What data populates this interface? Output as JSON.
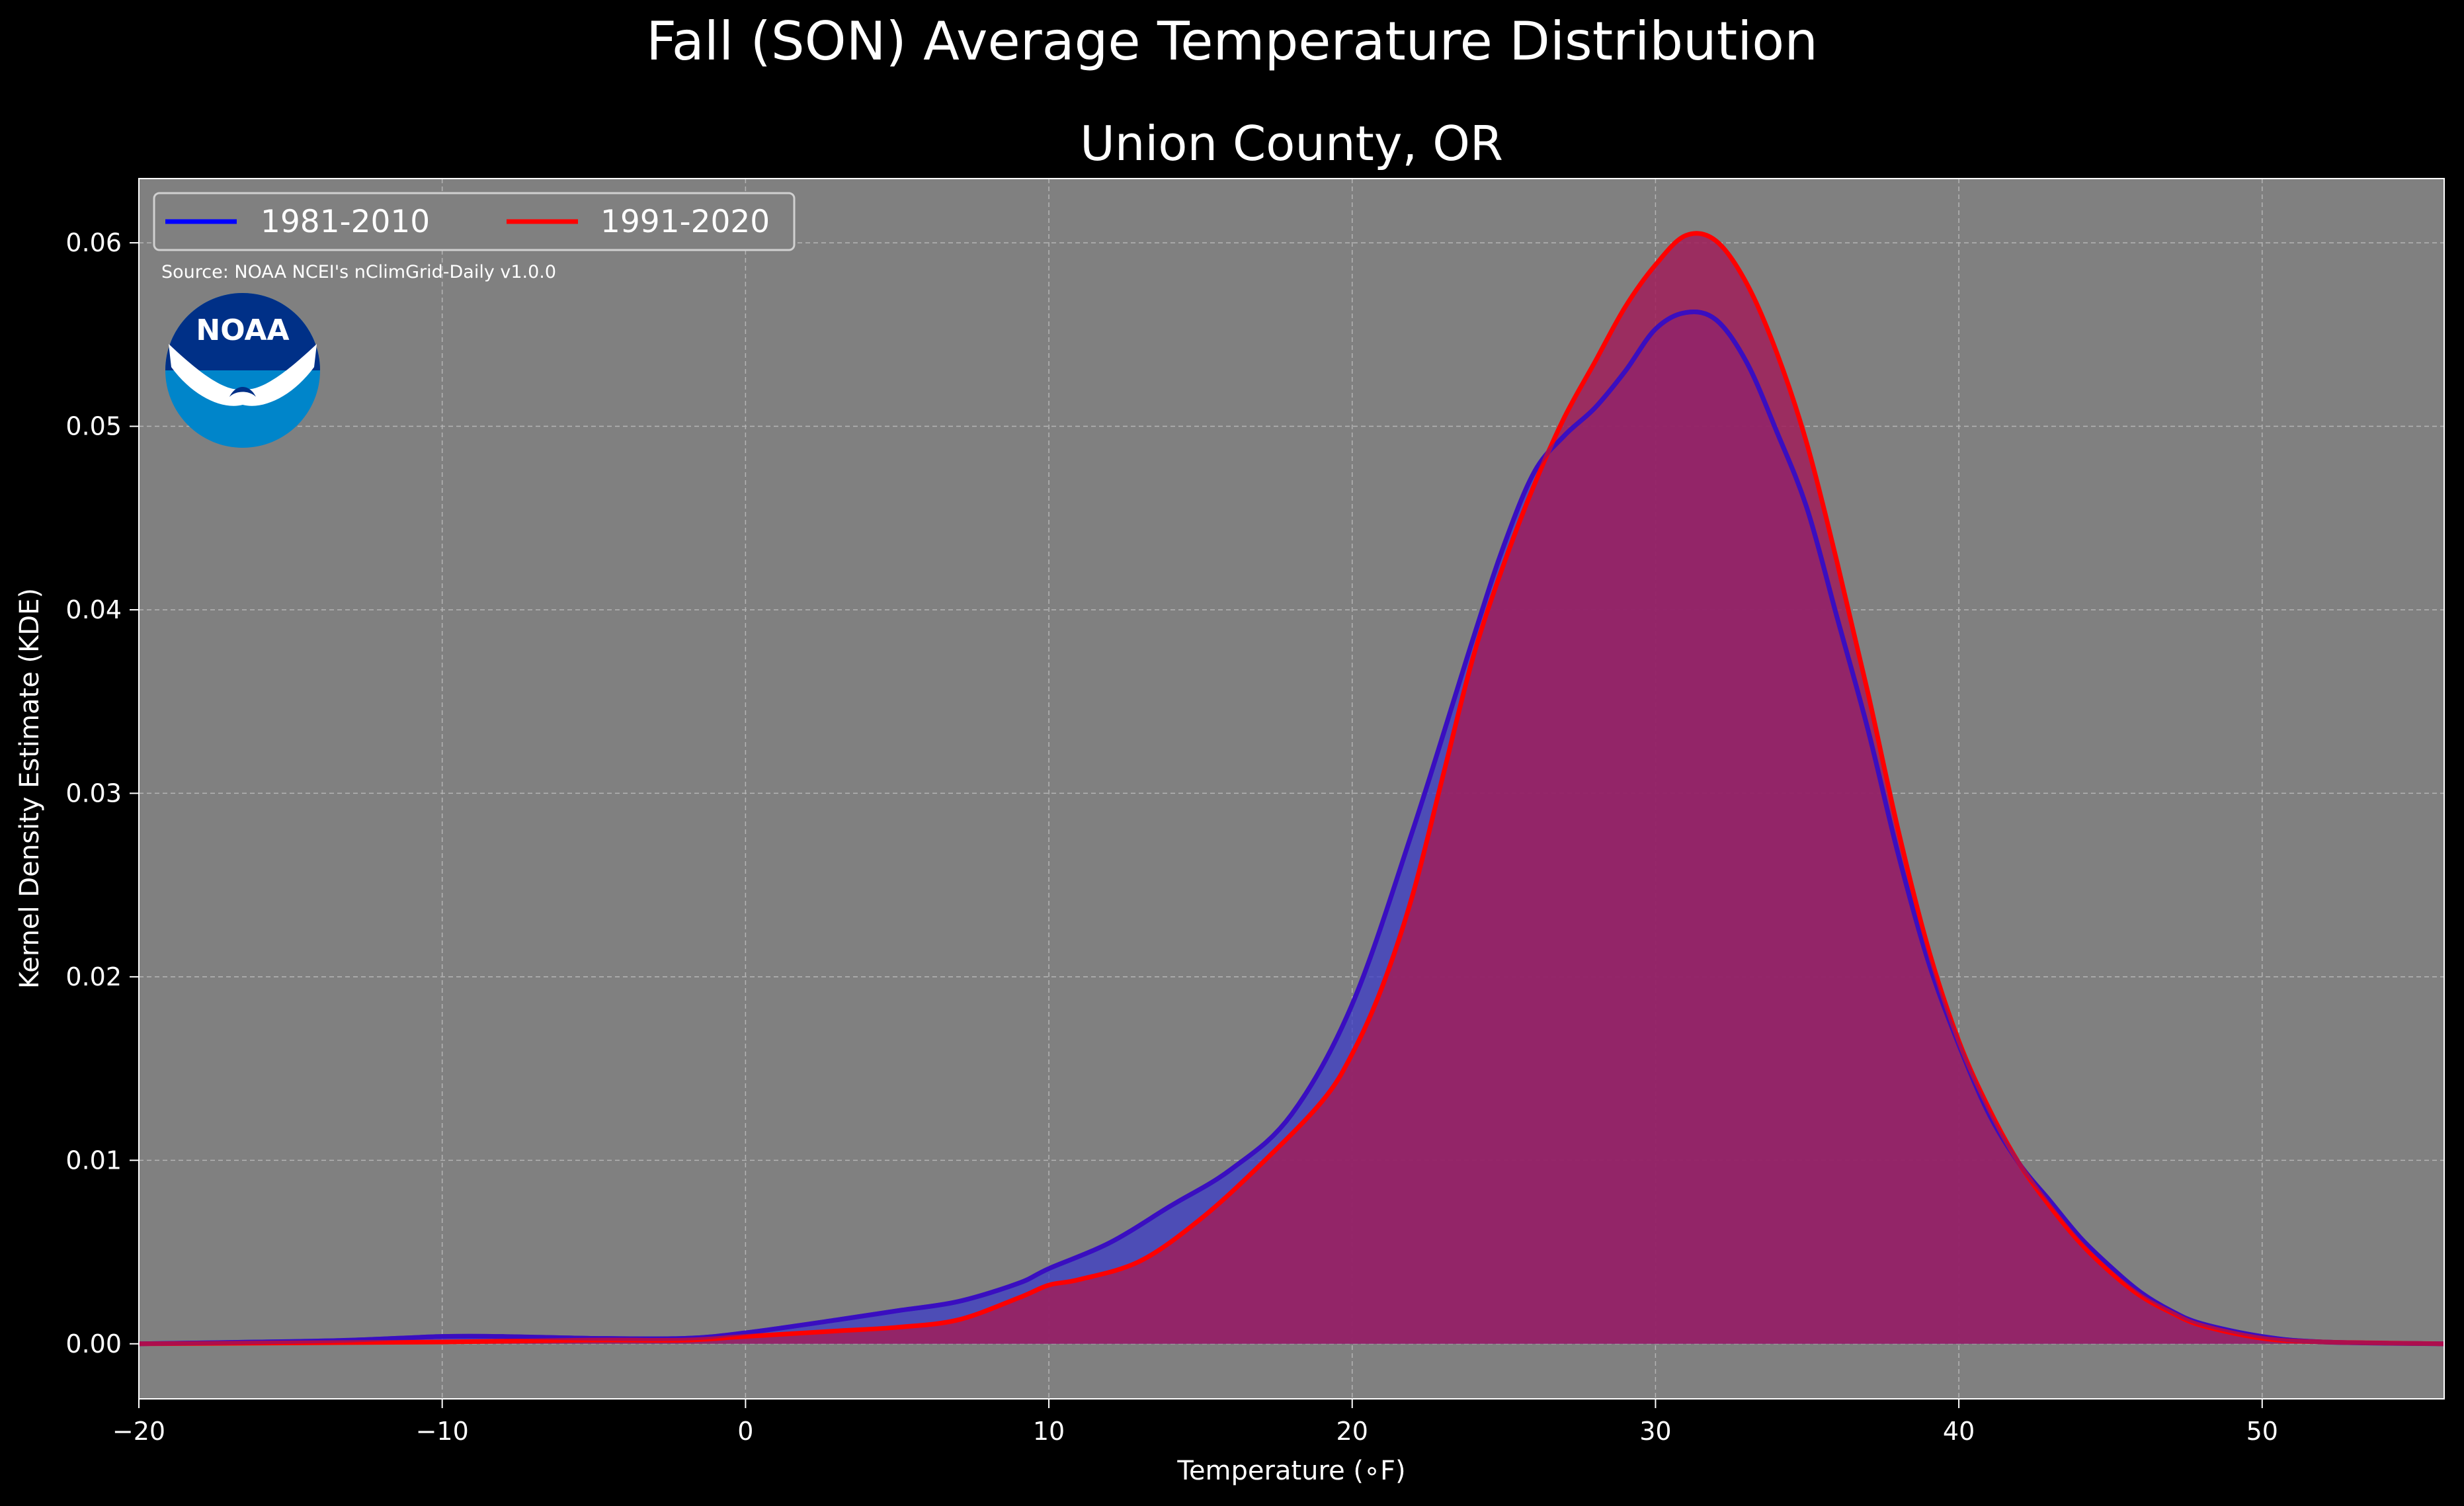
{
  "chart_data": {
    "type": "area",
    "title": "Fall (SON) Average Temperature Distribution",
    "subtitle": "Union County, OR",
    "xlabel": "Temperature (∘F)",
    "ylabel": "Kernel Density Estimate (KDE)",
    "xlim": [
      -20,
      56
    ],
    "ylim": [
      -0.003,
      0.0635
    ],
    "x_ticks": [
      -20,
      -10,
      0,
      10,
      20,
      30,
      40,
      50
    ],
    "x_tick_labels": [
      "−20",
      "−10",
      "0",
      "10",
      "20",
      "30",
      "40",
      "50"
    ],
    "y_ticks": [
      0.0,
      0.01,
      0.02,
      0.03,
      0.04,
      0.05,
      0.06
    ],
    "y_tick_labels": [
      "0.00",
      "0.01",
      "0.02",
      "0.03",
      "0.04",
      "0.05",
      "0.06"
    ],
    "grid": true,
    "legend_position": "top-left",
    "source_note": "Source: NOAA NCEI's nClimGrid-Daily v1.0.0",
    "logo_text": "NOAA",
    "background_color": "#000000",
    "plot_background_color": "#808080",
    "series": [
      {
        "name": "1981-2010",
        "color": "#0000ff",
        "fill_color": "#3c3cc8",
        "points": [
          [
            -20,
            0.0
          ],
          [
            -16,
            0.0001
          ],
          [
            -13,
            0.0002
          ],
          [
            -10,
            0.0004
          ],
          [
            -8,
            0.0004
          ],
          [
            -5,
            0.0003
          ],
          [
            -2,
            0.0003
          ],
          [
            0,
            0.0006
          ],
          [
            3,
            0.0013
          ],
          [
            5,
            0.0018
          ],
          [
            7,
            0.0023
          ],
          [
            9,
            0.0033
          ],
          [
            10,
            0.0041
          ],
          [
            12,
            0.0055
          ],
          [
            14,
            0.0075
          ],
          [
            16,
            0.0095
          ],
          [
            18,
            0.0125
          ],
          [
            20,
            0.0185
          ],
          [
            22,
            0.028
          ],
          [
            24,
            0.0385
          ],
          [
            25,
            0.0435
          ],
          [
            26,
            0.0475
          ],
          [
            27,
            0.0495
          ],
          [
            28,
            0.051
          ],
          [
            29,
            0.053
          ],
          [
            30,
            0.0553
          ],
          [
            31,
            0.0562
          ],
          [
            32,
            0.0558
          ],
          [
            33,
            0.0535
          ],
          [
            34,
            0.0497
          ],
          [
            35,
            0.0455
          ],
          [
            36,
            0.0395
          ],
          [
            37,
            0.0335
          ],
          [
            38,
            0.0267
          ],
          [
            39,
            0.0208
          ],
          [
            40,
            0.0163
          ],
          [
            41,
            0.0125
          ],
          [
            42,
            0.0098
          ],
          [
            43,
            0.0078
          ],
          [
            44,
            0.0058
          ],
          [
            45,
            0.0042
          ],
          [
            46,
            0.0028
          ],
          [
            47,
            0.0018
          ],
          [
            48,
            0.0011
          ],
          [
            50,
            0.0004
          ],
          [
            52,
            0.0001
          ],
          [
            56,
            0.0
          ]
        ]
      },
      {
        "name": "1991-2020",
        "color": "#ff0000",
        "fill_color": "#a01e5a",
        "points": [
          [
            -20,
            0.0
          ],
          [
            -10,
            0.0001
          ],
          [
            -5,
            0.0002
          ],
          [
            -2,
            0.0002
          ],
          [
            0,
            0.0004
          ],
          [
            3,
            0.0007
          ],
          [
            5,
            0.0009
          ],
          [
            7,
            0.0013
          ],
          [
            9,
            0.0025
          ],
          [
            10,
            0.0032
          ],
          [
            11,
            0.0035
          ],
          [
            13,
            0.0045
          ],
          [
            15,
            0.0068
          ],
          [
            17,
            0.0098
          ],
          [
            19,
            0.0132
          ],
          [
            20,
            0.0158
          ],
          [
            21,
            0.0195
          ],
          [
            22,
            0.0245
          ],
          [
            23,
            0.031
          ],
          [
            24,
            0.0375
          ],
          [
            25,
            0.0425
          ],
          [
            26,
            0.0468
          ],
          [
            27,
            0.0505
          ],
          [
            28,
            0.0535
          ],
          [
            29,
            0.0565
          ],
          [
            30,
            0.0588
          ],
          [
            31,
            0.0604
          ],
          [
            32,
            0.0601
          ],
          [
            33,
            0.0578
          ],
          [
            34,
            0.054
          ],
          [
            35,
            0.049
          ],
          [
            36,
            0.0425
          ],
          [
            37,
            0.0355
          ],
          [
            38,
            0.028
          ],
          [
            39,
            0.0215
          ],
          [
            40,
            0.0165
          ],
          [
            41,
            0.0128
          ],
          [
            42,
            0.0098
          ],
          [
            43,
            0.0075
          ],
          [
            44,
            0.0055
          ],
          [
            45,
            0.0039
          ],
          [
            46,
            0.0026
          ],
          [
            47,
            0.0017
          ],
          [
            48,
            0.001
          ],
          [
            50,
            0.0003
          ],
          [
            52,
            0.0001
          ],
          [
            56,
            0.0
          ]
        ]
      }
    ]
  }
}
